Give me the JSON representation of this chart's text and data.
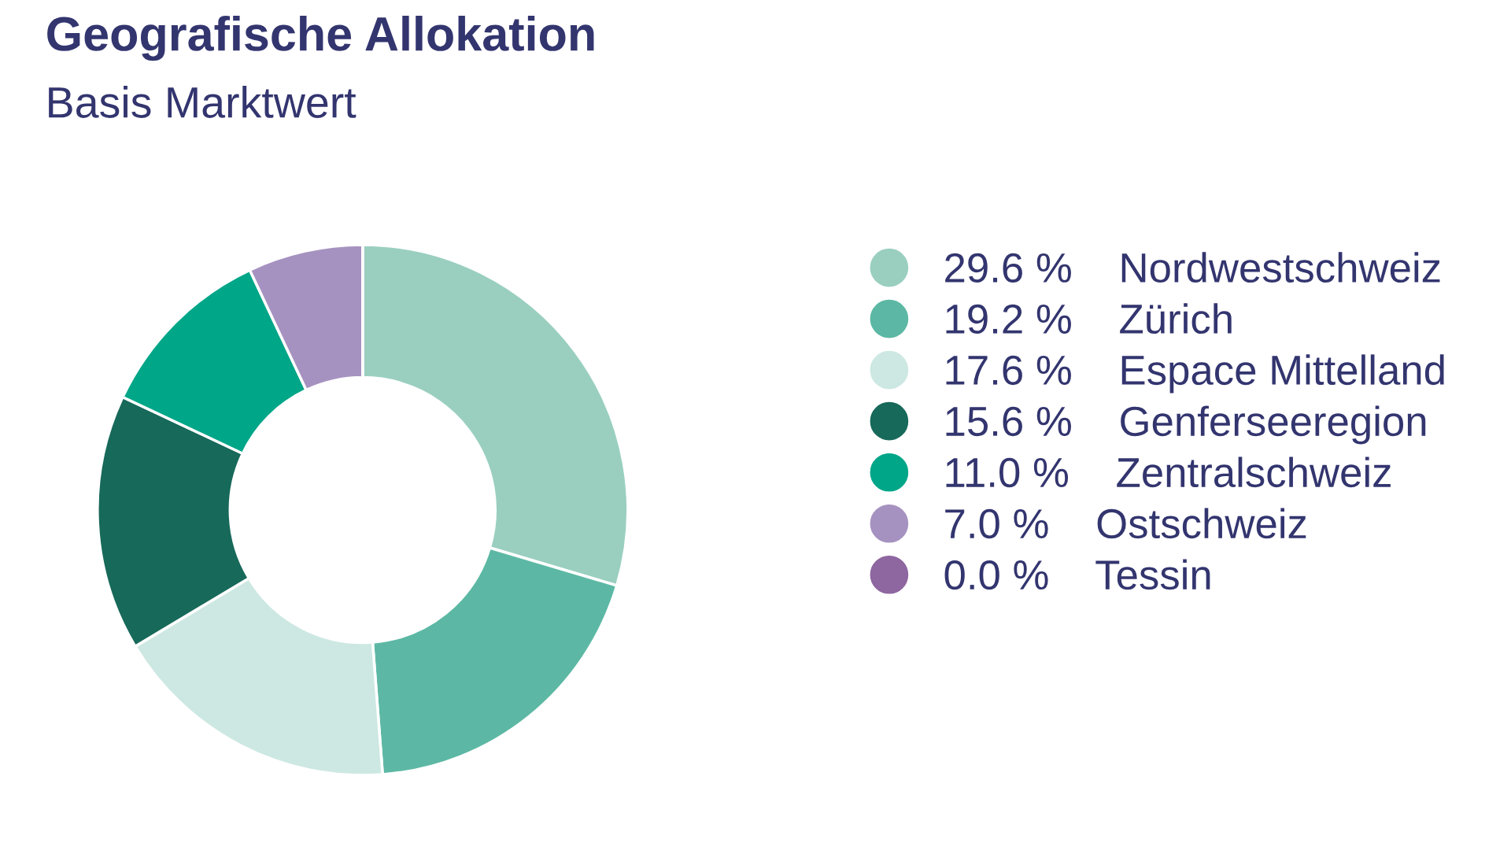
{
  "chart_data": {
    "type": "donut",
    "title": "Geografische Allokation",
    "subtitle": "Basis Marktwert",
    "categories": [
      "Nordwestschweiz",
      "Zürich",
      "Espace Mittelland",
      "Genferseeregion",
      "Zentralschweiz",
      "Ostschweiz",
      "Tessin"
    ],
    "values": [
      29.6,
      19.2,
      17.6,
      15.6,
      11.0,
      7.0,
      0.0
    ],
    "value_labels": [
      "29.6 %",
      "19.2 %",
      "17.6 %",
      "15.6 %",
      "11.0 %",
      "7.0 %",
      "0.0 %"
    ],
    "colors": [
      "#9acfc0",
      "#5cb8a4",
      "#cde8e2",
      "#17695a",
      "#00a688",
      "#a692c0",
      "#8e66a0"
    ],
    "legend": "right"
  }
}
